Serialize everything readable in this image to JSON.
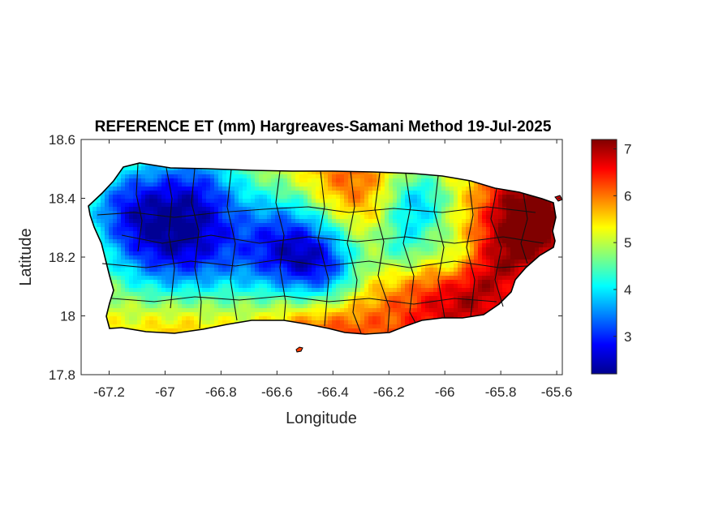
{
  "chart_data": {
    "type": "heatmap",
    "title": "REFERENCE ET (mm) Hargreaves-Samani Method  19-Jul-2025",
    "xlabel": "Longitude",
    "ylabel": "Latitude",
    "xlim": [
      -67.3,
      -65.58
    ],
    "ylim": [
      17.8,
      18.6
    ],
    "xticks": [
      -67.2,
      -67,
      -66.8,
      -66.6,
      -66.4,
      -66.2,
      -66,
      -65.8,
      -65.6
    ],
    "yticks": [
      17.8,
      18,
      18.2,
      18.4,
      18.6
    ],
    "xtick_labels": [
      "-67.2",
      "-67",
      "-66.8",
      "-66.6",
      "-66.4",
      "-66.2",
      "-66",
      "-65.8",
      "-65.6"
    ],
    "ytick_labels": [
      "17.8",
      "18",
      "18.2",
      "18.4",
      "18.6"
    ],
    "colorbar": {
      "colormap": "jet",
      "range": [
        2.2,
        7.2
      ],
      "ticks": [
        3,
        4,
        5,
        6,
        7
      ],
      "tick_labels": [
        "3",
        "4",
        "5",
        "6",
        "7"
      ]
    },
    "field": {
      "base": 5.4,
      "min": 2.3,
      "max": 7.2,
      "features": [
        {
          "lon": -66.95,
          "lat": 18.22,
          "sigma": 0.17,
          "delta": -2.8
        },
        {
          "lon": -66.55,
          "lat": 18.22,
          "sigma": 0.14,
          "delta": -2.6
        },
        {
          "lon": -66.42,
          "lat": 18.14,
          "sigma": 0.1,
          "delta": -1.6
        },
        {
          "lon": -67.15,
          "lat": 18.38,
          "sigma": 0.12,
          "delta": -1.5
        },
        {
          "lon": -66.1,
          "lat": 18.38,
          "sigma": 0.09,
          "delta": -1.6
        },
        {
          "lon": -66.88,
          "lat": 18.45,
          "sigma": 0.12,
          "delta": -1.2
        },
        {
          "lon": -66.15,
          "lat": 18.22,
          "sigma": 0.07,
          "delta": -1.0
        },
        {
          "lon": -65.97,
          "lat": 18.2,
          "sigma": 0.06,
          "delta": -0.9
        },
        {
          "lon": -65.7,
          "lat": 18.36,
          "sigma": 0.12,
          "delta": 1.8
        },
        {
          "lon": -65.7,
          "lat": 18.24,
          "sigma": 0.1,
          "delta": 0.9
        },
        {
          "lon": -66.45,
          "lat": 17.98,
          "sigma": 0.15,
          "delta": 1.4
        },
        {
          "lon": -66.0,
          "lat": 18.0,
          "sigma": 0.15,
          "delta": 1.2
        },
        {
          "lon": -66.95,
          "lat": 18.0,
          "sigma": 0.14,
          "delta": 1.0
        },
        {
          "lon": -66.35,
          "lat": 18.44,
          "sigma": 0.12,
          "delta": 0.9
        },
        {
          "lon": -65.85,
          "lat": 18.1,
          "sigma": 0.1,
          "delta": 0.8
        }
      ]
    }
  }
}
